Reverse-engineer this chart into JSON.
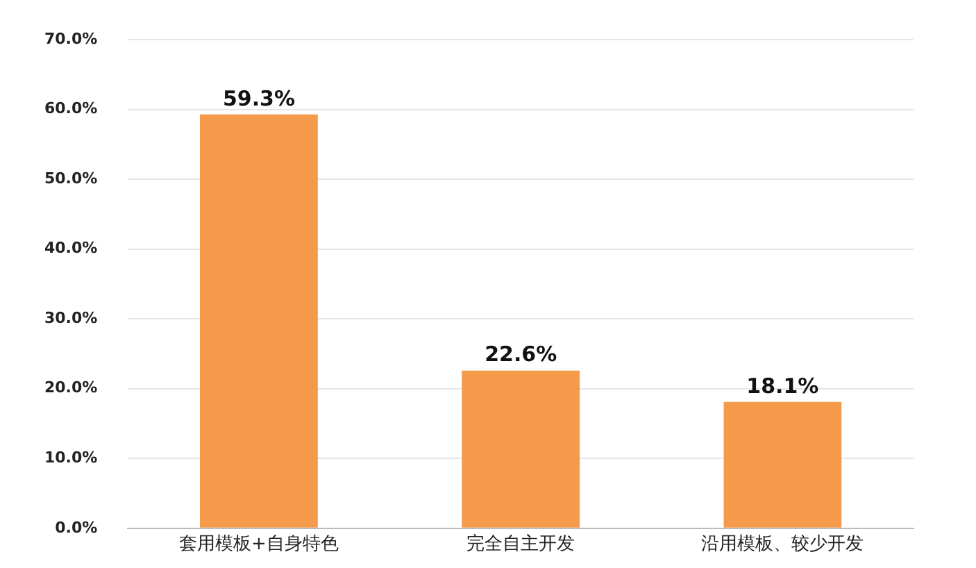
{
  "chart_data": {
    "type": "bar",
    "categories": [
      "套用模板+自身特色",
      "完全自主开发",
      "沿用模板、较少开发"
    ],
    "values": [
      59.3,
      22.6,
      18.1
    ],
    "color": "#f59a4a",
    "value_labels": [
      "59.3%",
      "22.6%",
      "18.1%"
    ],
    "ylim": [
      0,
      70
    ],
    "yticks": [
      {
        "value": 0,
        "label": "0.0%"
      },
      {
        "value": 10,
        "label": "10.0%"
      },
      {
        "value": 20,
        "label": "20.0%"
      },
      {
        "value": 30,
        "label": "30.0%"
      },
      {
        "value": 40,
        "label": "40.0%"
      },
      {
        "value": 50,
        "label": "50.0%"
      },
      {
        "value": 60,
        "label": "60.0%"
      },
      {
        "value": 70,
        "label": "70.0%"
      }
    ],
    "grid": "y",
    "legend": false
  }
}
